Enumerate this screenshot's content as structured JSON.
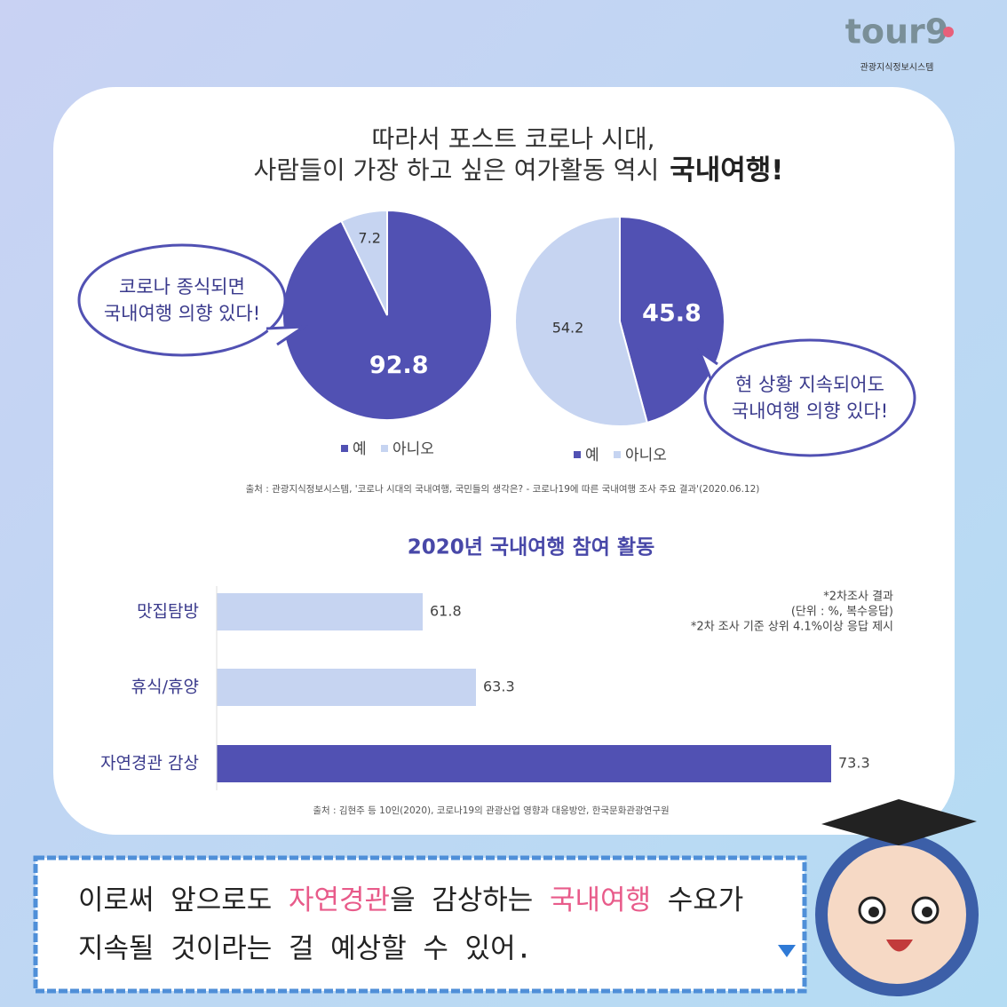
{
  "logo": {
    "name": "tour9",
    "subtitle": "관광지식정보시스템"
  },
  "headline": {
    "line1": "따라서 포스트 코로나 시대,",
    "line2": "사람들이 가장 하고 싶은 여가활동 역시",
    "emphasis": "국내여행!"
  },
  "chart_data": [
    {
      "type": "pie",
      "callout": [
        "코로나 종식되면",
        "국내여행 의향 있다!"
      ],
      "categories": [
        "예",
        "아니오"
      ],
      "values": [
        92.8,
        7.2
      ],
      "colors": [
        "#5151b3",
        "#c6d4f1"
      ]
    },
    {
      "type": "pie",
      "callout": [
        "현 상황 지속되어도",
        "국내여행 의향 있다!"
      ],
      "categories": [
        "예",
        "아니오"
      ],
      "values": [
        45.8,
        54.2
      ],
      "colors": [
        "#5151b3",
        "#c6d4f1"
      ]
    },
    {
      "type": "barh",
      "title": "2020년 국내여행 참여 활동",
      "categories": [
        "맛집탐방",
        "휴식/휴양",
        "자연경관 감상"
      ],
      "values": [
        61.8,
        63.3,
        73.3
      ],
      "colors": [
        "#c6d4f1",
        "#c6d4f1",
        "#5151b3"
      ],
      "xlim": [
        56,
        74
      ],
      "notes": [
        "*2차조사 결과",
        "(단위 : %, 복수응답)",
        "*2차 조사 기준 상위 4.1%이상 응답 제시"
      ]
    }
  ],
  "source_1": "출처 : 관광지식정보시스템, '코로나 시대의 국내여행, 국민들의 생각은? - 코로나19에 따른 국내여행 조사 주요 결과'(2020.06.12)",
  "source_2": "출처 : 김현주 등 10인(2020), 코로나19의 관광산업 영향과 대응방안,  한국문화관광연구원",
  "dialogue": {
    "line1": [
      "이로써 앞으로도 ",
      "자연경관",
      "을 감상하는 ",
      "국내여행",
      " 수요가"
    ],
    "line2": "지속될 것이라는 걸 예상할 수 있어."
  }
}
